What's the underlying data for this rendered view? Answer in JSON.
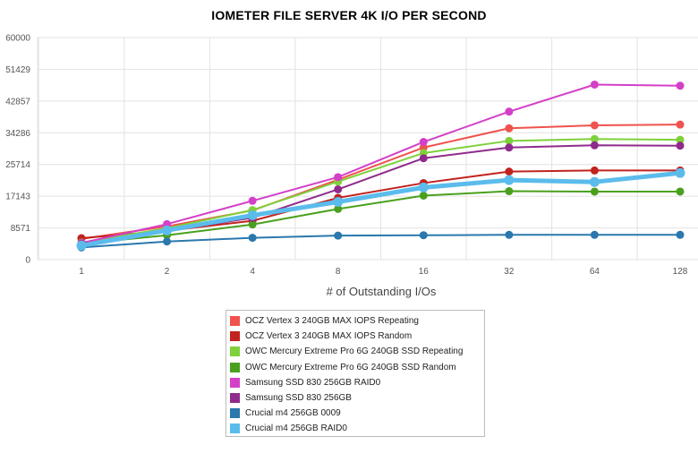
{
  "chart_data": {
    "type": "line",
    "title": "IOMETER FILE SERVER 4K I/O PER SECOND",
    "xlabel": "# of Outstanding I/Os",
    "ylabel": "",
    "categories": [
      "1",
      "2",
      "4",
      "8",
      "16",
      "32",
      "64",
      "128"
    ],
    "y_ticks": [
      "0",
      "8571",
      "17143",
      "25714",
      "34286",
      "42857",
      "51429",
      "60000"
    ],
    "ylim": [
      0,
      60000
    ],
    "grid": true,
    "legend_position": "bottom-center",
    "series": [
      {
        "name": "OCZ Vertex 3 240GB MAX IOPS Repeating",
        "color": "#f0524d",
        "values": [
          5600,
          9000,
          13300,
          21600,
          30300,
          35500,
          36300,
          36500
        ]
      },
      {
        "name": "OCZ Vertex 3 240GB MAX IOPS Random",
        "color": "#c1231e",
        "values": [
          5800,
          7800,
          10500,
          16700,
          20700,
          23800,
          24100,
          24100
        ]
      },
      {
        "name": "OWC Mercury Extreme Pro 6G 240GB SSD Repeating",
        "color": "#7ed13a",
        "values": [
          4600,
          8500,
          13400,
          21100,
          28800,
          32100,
          32600,
          32400
        ]
      },
      {
        "name": "OWC Mercury Extreme Pro 6G 240GB SSD Random",
        "color": "#4aa01d",
        "values": [
          4300,
          6600,
          9500,
          13700,
          17300,
          18500,
          18400,
          18400
        ]
      },
      {
        "name": "Samsung SSD 830 256GB RAID0",
        "color": "#d43fc8",
        "values": [
          4500,
          9600,
          15900,
          22300,
          31800,
          40000,
          47300,
          47000
        ]
      },
      {
        "name": "Samsung SSD 830 256GB",
        "color": "#8f2b8c",
        "values": [
          4200,
          7700,
          11300,
          19000,
          27400,
          30300,
          30900,
          30800
        ]
      },
      {
        "name": "Crucial m4 256GB 0009",
        "color": "#2a78ad",
        "values": [
          3300,
          4900,
          5900,
          6500,
          6600,
          6700,
          6700,
          6700
        ]
      },
      {
        "name": "Crucial m4 256GB RAID0",
        "color": "#5bbcec",
        "values": [
          3800,
          7900,
          12000,
          15600,
          19500,
          21500,
          21000,
          23400
        ]
      }
    ]
  }
}
